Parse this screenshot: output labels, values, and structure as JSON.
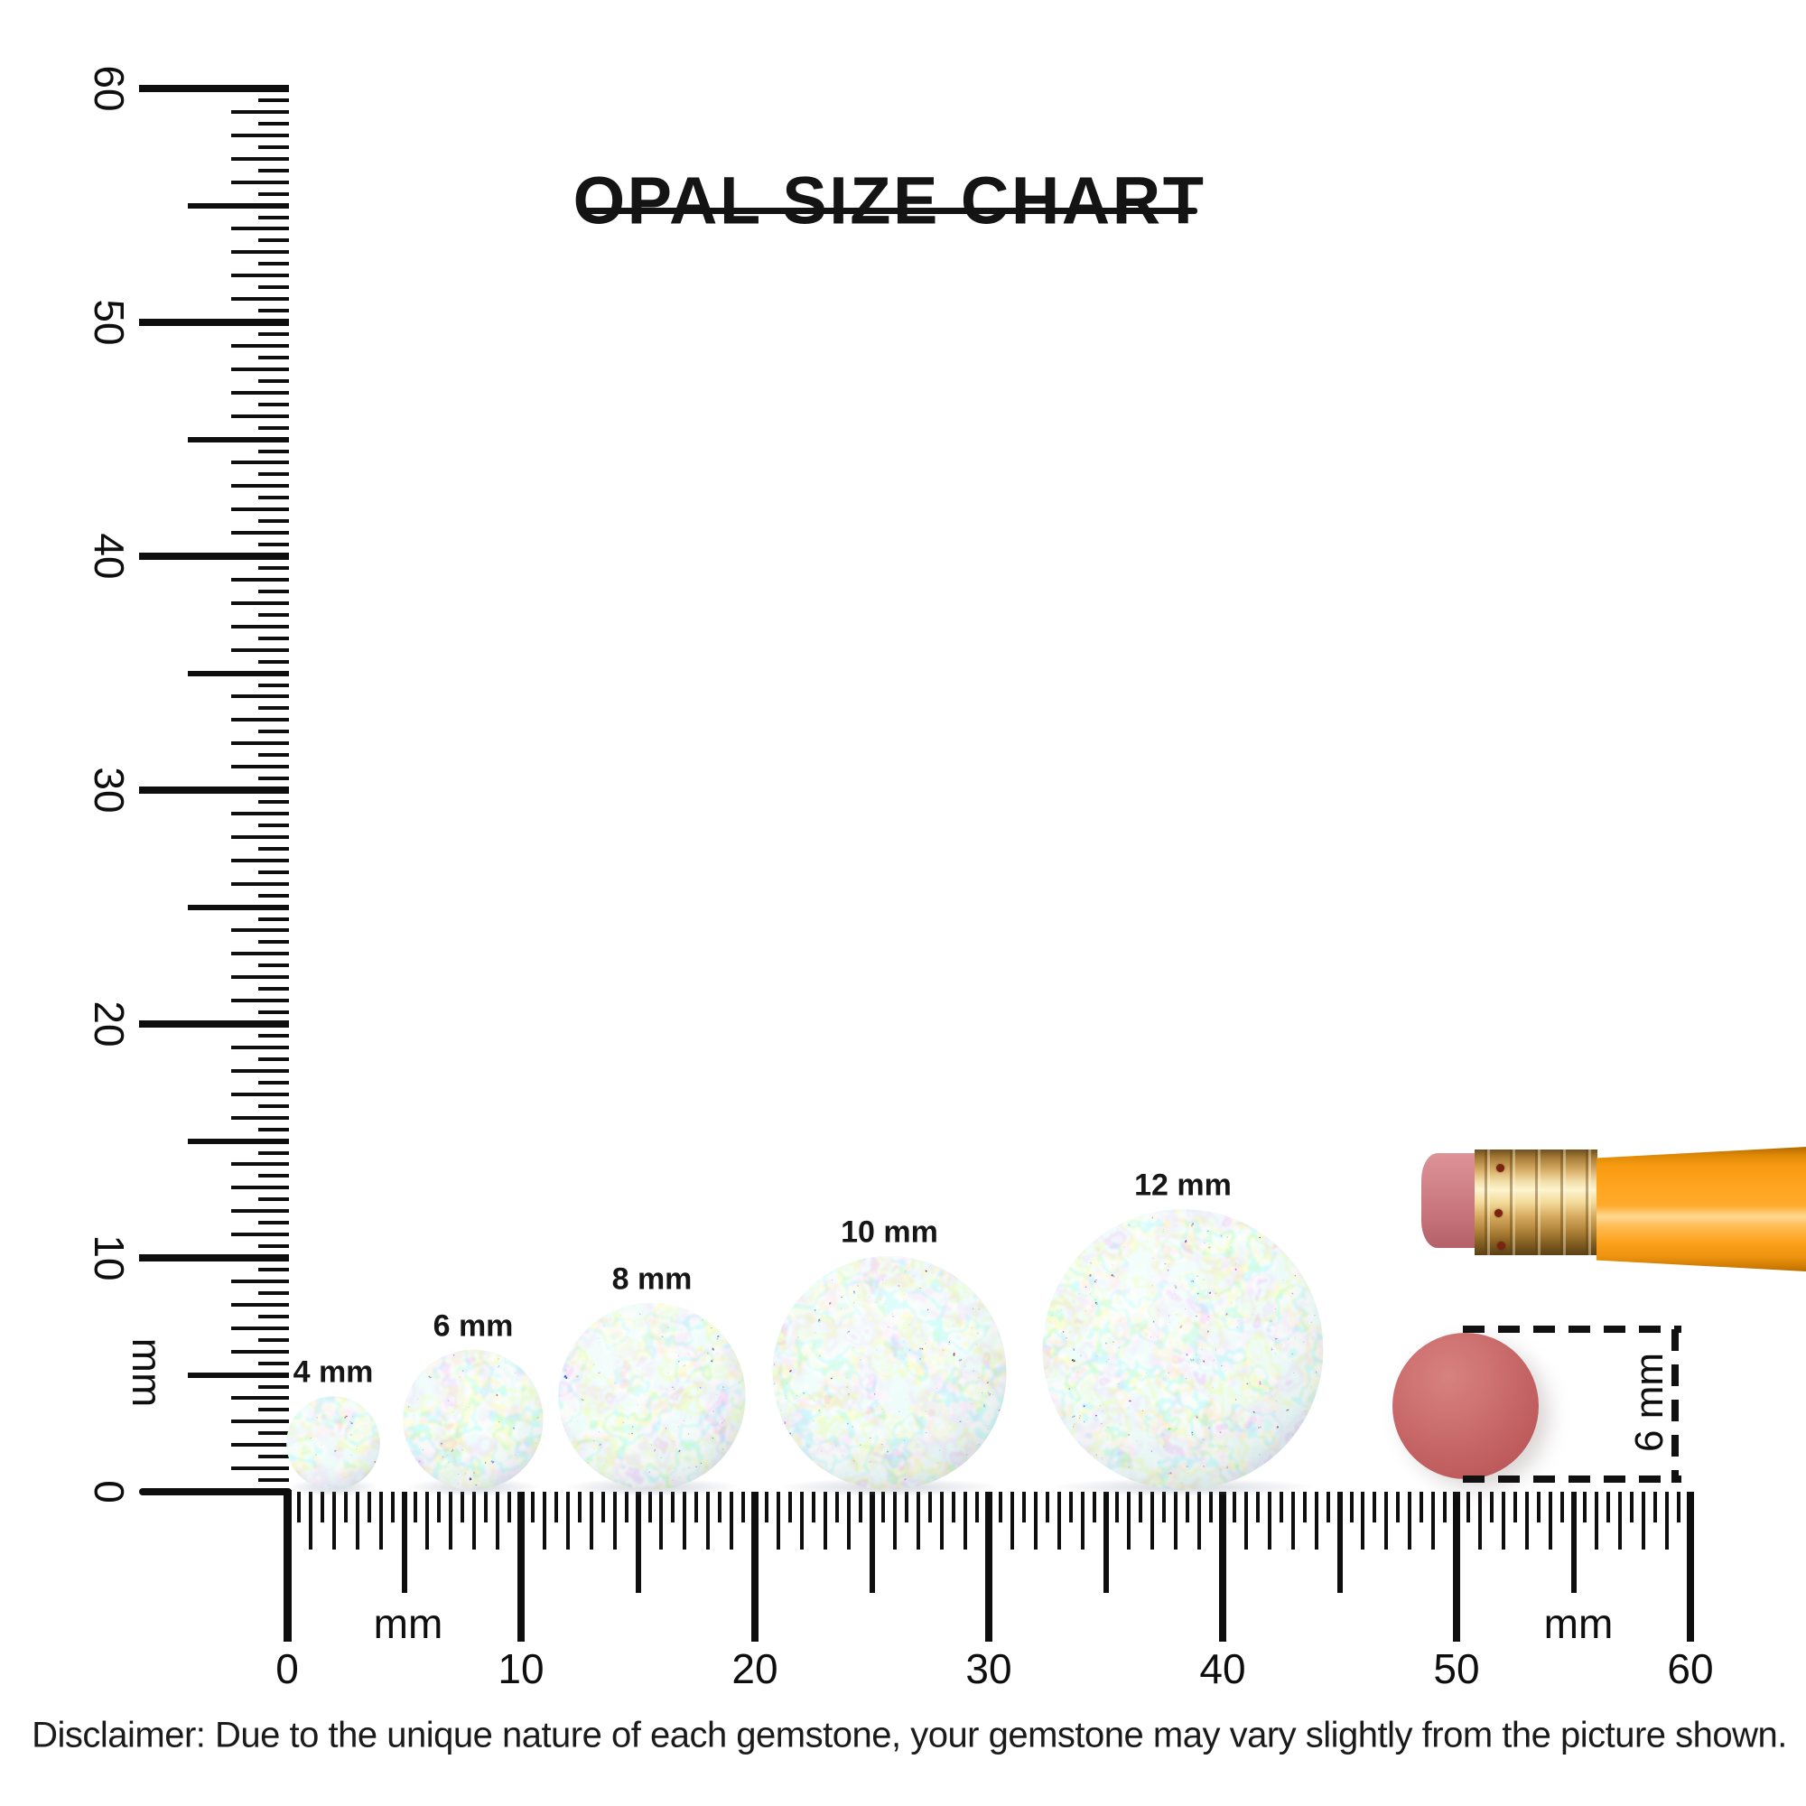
{
  "title": {
    "text": "OPAL SIZE CHART"
  },
  "rulers": {
    "unit": "mm",
    "vertical": {
      "min": 0,
      "max": 60,
      "number_labels": [
        "60",
        "50",
        "40",
        "30",
        "20",
        "10",
        "0"
      ],
      "unit_label": "mm"
    },
    "horizontal": {
      "min": 0,
      "max": 60,
      "number_labels": [
        "0",
        "10",
        "20",
        "30",
        "40",
        "50",
        "60"
      ],
      "unit_label_left": "mm",
      "unit_label_right": "mm"
    }
  },
  "opals": [
    {
      "label": "4 mm",
      "size_mm": 4
    },
    {
      "label": "6 mm",
      "size_mm": 6
    },
    {
      "label": "8 mm",
      "size_mm": 8
    },
    {
      "label": "10 mm",
      "size_mm": 10
    },
    {
      "label": "12 mm",
      "size_mm": 12
    }
  ],
  "opal_colors": {
    "base": "#e8f3f2",
    "accents": [
      "#ff8a3c",
      "#ffd24a",
      "#5fe88a",
      "#7f8ade",
      "#f0b8d0",
      "#bfeef0"
    ]
  },
  "reference_objects": {
    "pencil": {
      "name": "pencil with eraser",
      "eraser_color": "#cf7f85",
      "ferrule_color": "#e3bd72",
      "body_color": "#ffa41e"
    },
    "eraser_dot": {
      "label": "6 mm",
      "size_mm": 6,
      "color": "#c66767"
    }
  },
  "disclaimer": "Disclaimer: Due to the unique nature of each gemstone, your gemstone may vary slightly from the picture shown."
}
